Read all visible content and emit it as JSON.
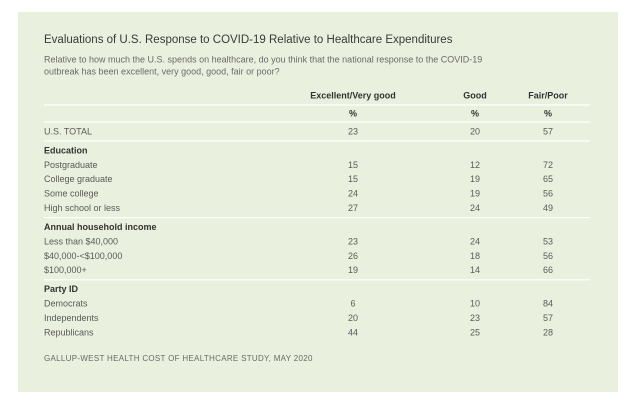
{
  "title": "Evaluations of U.S. Response to COVID-19 Relative to Healthcare Expenditures",
  "question": [
    "Relative to how much the U.S. spends on healthcare, do you think that the national response to the COVID-19",
    "outbreak has been excellent, very good, good, fair or poor?"
  ],
  "table": {
    "columns": [
      "Excellent/Very good",
      "Good",
      "Fair/Poor"
    ],
    "units": [
      "%",
      "%",
      "%"
    ],
    "total": {
      "label": "U.S. TOTAL",
      "values": [
        23,
        20,
        57
      ]
    },
    "sections": [
      {
        "heading": "Education",
        "rows": [
          {
            "label": "Postgraduate",
            "values": [
              15,
              12,
              72
            ]
          },
          {
            "label": "College graduate",
            "values": [
              15,
              19,
              65
            ]
          },
          {
            "label": "Some college",
            "values": [
              24,
              19,
              56
            ]
          },
          {
            "label": "High school or less",
            "values": [
              27,
              24,
              49
            ]
          }
        ]
      },
      {
        "heading": "Annual household income",
        "rows": [
          {
            "label": "Less than $40,000",
            "values": [
              23,
              24,
              53
            ]
          },
          {
            "label": "$40,000-<$100,000",
            "values": [
              26,
              18,
              56
            ]
          },
          {
            "label": "$100,000+",
            "values": [
              19,
              14,
              66
            ]
          }
        ]
      },
      {
        "heading": "Party ID",
        "rows": [
          {
            "label": "Democrats",
            "values": [
              6,
              10,
              84
            ]
          },
          {
            "label": "Independents",
            "values": [
              20,
              23,
              57
            ]
          },
          {
            "label": "Republicans",
            "values": [
              44,
              25,
              28
            ]
          }
        ]
      }
    ]
  },
  "source": "GALLUP-WEST HEALTH COST OF HEALTHCARE STUDY, MAY 2020"
}
